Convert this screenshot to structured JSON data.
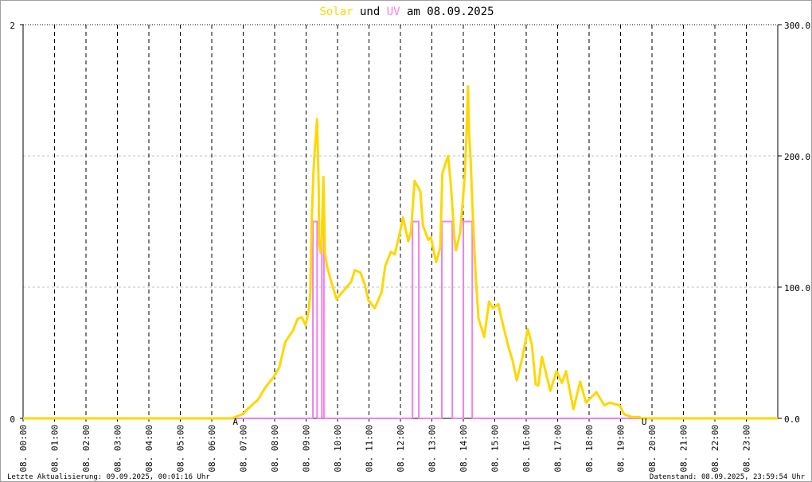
{
  "chart_data": {
    "type": "line",
    "title": {
      "part1": "Solar",
      "part2": " und ",
      "part3": "UV",
      "part4": " am 08.09.2025"
    },
    "x_tick_labels": [
      "08. 00:00",
      "08. 01:00",
      "08. 02:00",
      "08. 03:00",
      "08. 04:00",
      "08. 05:00",
      "08. 06:00",
      "08. 07:00",
      "08. 08:00",
      "08. 09:00",
      "08. 10:00",
      "08. 11:00",
      "08. 12:00",
      "08. 13:00",
      "08. 14:00",
      "08. 15:00",
      "08. 16:00",
      "08. 17:00",
      "08. 18:00",
      "08. 19:00",
      "08. 20:00",
      "08. 21:00",
      "08. 22:00",
      "08. 23:00"
    ],
    "xlim": [
      "00:00",
      "24:00"
    ],
    "y_left": {
      "lim": [
        0,
        2
      ],
      "tick_labels": [
        "2",
        "0"
      ]
    },
    "y_right": {
      "lim": [
        0,
        300
      ],
      "tick_labels": [
        "300.0",
        "200.0",
        "100.0",
        "0.0"
      ]
    },
    "grid": true,
    "series": [
      {
        "name": "Solar",
        "axis": "right",
        "color": "#ffd700",
        "points": [
          [
            "00:00",
            0
          ],
          [
            "06:38",
            0
          ],
          [
            "06:58",
            3
          ],
          [
            "07:19",
            11
          ],
          [
            "07:28",
            14
          ],
          [
            "07:43",
            24
          ],
          [
            "07:59",
            32
          ],
          [
            "08:09",
            39
          ],
          [
            "08:20",
            58
          ],
          [
            "08:35",
            67
          ],
          [
            "08:44",
            76
          ],
          [
            "08:52",
            77
          ],
          [
            "08:59",
            71
          ],
          [
            "09:05",
            82
          ],
          [
            "09:08",
            96
          ],
          [
            "09:11",
            153
          ],
          [
            "09:14",
            187
          ],
          [
            "09:17",
            207
          ],
          [
            "09:21",
            228
          ],
          [
            "09:24",
            177
          ],
          [
            "09:25",
            132
          ],
          [
            "09:28",
            126
          ],
          [
            "09:30",
            138
          ],
          [
            "09:33",
            184
          ],
          [
            "09:36",
            126
          ],
          [
            "09:40",
            116
          ],
          [
            "09:48",
            104
          ],
          [
            "09:58",
            91
          ],
          [
            "10:11",
            97
          ],
          [
            "10:26",
            104
          ],
          [
            "10:33",
            113
          ],
          [
            "10:44",
            111
          ],
          [
            "10:52",
            102
          ],
          [
            "10:59",
            90
          ],
          [
            "11:11",
            84
          ],
          [
            "11:24",
            96
          ],
          [
            "11:31",
            116
          ],
          [
            "11:42",
            127
          ],
          [
            "11:49",
            125
          ],
          [
            "11:57",
            138
          ],
          [
            "12:05",
            153
          ],
          [
            "12:15",
            135
          ],
          [
            "12:20",
            142
          ],
          [
            "12:27",
            181
          ],
          [
            "12:38",
            173
          ],
          [
            "12:43",
            147
          ],
          [
            "12:53",
            136
          ],
          [
            "12:58",
            138
          ],
          [
            "13:08",
            119
          ],
          [
            "13:16",
            130
          ],
          [
            "13:20",
            187
          ],
          [
            "13:31",
            200
          ],
          [
            "13:36",
            179
          ],
          [
            "13:43",
            138
          ],
          [
            "13:46",
            128
          ],
          [
            "13:54",
            142
          ],
          [
            "13:58",
            161
          ],
          [
            "14:03",
            187
          ],
          [
            "14:06",
            217
          ],
          [
            "14:09",
            253
          ],
          [
            "14:11",
            217
          ],
          [
            "14:14",
            197
          ],
          [
            "14:18",
            155
          ],
          [
            "14:24",
            106
          ],
          [
            "14:29",
            76
          ],
          [
            "14:40",
            62
          ],
          [
            "14:49",
            89
          ],
          [
            "14:56",
            84
          ],
          [
            "15:07",
            87
          ],
          [
            "15:14",
            74
          ],
          [
            "15:25",
            56
          ],
          [
            "15:34",
            44
          ],
          [
            "15:42",
            29
          ],
          [
            "15:52",
            45
          ],
          [
            "16:03",
            68
          ],
          [
            "16:11",
            56
          ],
          [
            "16:18",
            26
          ],
          [
            "16:23",
            25
          ],
          [
            "16:30",
            47
          ],
          [
            "16:46",
            21
          ],
          [
            "16:58",
            36
          ],
          [
            "17:08",
            27
          ],
          [
            "17:16",
            36
          ],
          [
            "17:30",
            7
          ],
          [
            "17:43",
            28
          ],
          [
            "17:54",
            12
          ],
          [
            "18:14",
            20
          ],
          [
            "18:29",
            10
          ],
          [
            "18:39",
            12
          ],
          [
            "18:58",
            10
          ],
          [
            "19:07",
            3
          ],
          [
            "19:22",
            1
          ],
          [
            "19:36",
            1
          ],
          [
            "19:40",
            0
          ],
          [
            "24:00",
            0
          ]
        ]
      },
      {
        "name": "UV",
        "axis": "left",
        "color": "#ee82ee",
        "style": "step",
        "pulses": [
          [
            "09:13",
            "09:21",
            1
          ],
          [
            "09:30",
            "09:34",
            1
          ],
          [
            "12:23",
            "12:35",
            1
          ],
          [
            "13:19",
            "13:39",
            1
          ],
          [
            "14:00",
            "14:17",
            1
          ]
        ]
      }
    ],
    "markers": [
      {
        "label": "A",
        "time": "06:45",
        "color": "#ff0000"
      },
      {
        "label": "U",
        "time": "19:45",
        "color": "#ff0000"
      }
    ]
  },
  "footer": {
    "left": "Letzte Aktualisierung: 09.09.2025, 00:01:16 Uhr",
    "right": "Datenstand: 08.09.2025, 23:59:54 Uhr"
  }
}
